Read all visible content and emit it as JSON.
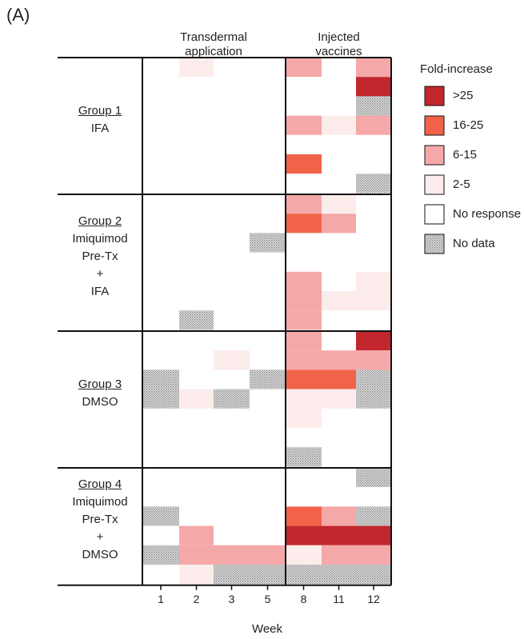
{
  "panel_label": "(A)",
  "chart_data": {
    "type": "heatmap",
    "xlabel": "Week",
    "x_groups": [
      {
        "label": "Transdermal application",
        "lines": [
          "Transdermal",
          "application"
        ],
        "weeks": [
          "1",
          "2",
          "3",
          "5"
        ]
      },
      {
        "label": "Injected vaccines",
        "lines": [
          "Injected",
          "vaccines"
        ],
        "weeks": [
          "8",
          "11",
          "12"
        ]
      }
    ],
    "weeks": [
      "1",
      "2",
      "3",
      "5",
      "8",
      "11",
      "12"
    ],
    "legend": {
      "title": "Fold-increase",
      "items": [
        {
          "key": "h",
          "label": ">25",
          "color": "#c1272d"
        },
        {
          "key": "m",
          "label": "16-25",
          "color": "#f26249"
        },
        {
          "key": "l",
          "label": "6-15",
          "color": "#f5a8a8"
        },
        {
          "key": "v",
          "label": "2-5",
          "color": "#fdecec"
        },
        {
          "key": "0",
          "label": "No response",
          "color": "#ffffff"
        },
        {
          "key": "x",
          "label": "No data",
          "color": "#c8c8c8"
        }
      ]
    },
    "groups": [
      {
        "name": "Group 1",
        "label_lines": [
          "IFA"
        ],
        "rows": [
          [
            "0",
            "v",
            "0",
            "0",
            "l",
            "0",
            "l"
          ],
          [
            "0",
            "0",
            "0",
            "0",
            "0",
            "0",
            "h"
          ],
          [
            "0",
            "0",
            "0",
            "0",
            "0",
            "0",
            "x"
          ],
          [
            "0",
            "0",
            "0",
            "0",
            "l",
            "v",
            "l"
          ],
          [
            "0",
            "0",
            "0",
            "0",
            "0",
            "0",
            "0"
          ],
          [
            "0",
            "0",
            "0",
            "0",
            "m",
            "0",
            "0"
          ],
          [
            "0",
            "0",
            "0",
            "0",
            "0",
            "0",
            "x"
          ]
        ]
      },
      {
        "name": "Group 2",
        "label_lines": [
          "Imiquimod",
          "Pre-Tx",
          "+",
          "IFA"
        ],
        "rows": [
          [
            "0",
            "0",
            "0",
            "0",
            "l",
            "v",
            "0"
          ],
          [
            "0",
            "0",
            "0",
            "0",
            "m",
            "l",
            "0"
          ],
          [
            "0",
            "0",
            "0",
            "x",
            "0",
            "0",
            "0"
          ],
          [
            "0",
            "0",
            "0",
            "0",
            "0",
            "0",
            "0"
          ],
          [
            "0",
            "0",
            "0",
            "0",
            "l",
            "0",
            "v"
          ],
          [
            "0",
            "0",
            "0",
            "0",
            "l",
            "v",
            "v"
          ],
          [
            "0",
            "x",
            "0",
            "0",
            "l",
            "0",
            "0"
          ]
        ]
      },
      {
        "name": "Group 3",
        "label_lines": [
          "DMSO"
        ],
        "rows": [
          [
            "0",
            "0",
            "0",
            "0",
            "l",
            "0",
            "h"
          ],
          [
            "0",
            "0",
            "v",
            "0",
            "l",
            "l",
            "l"
          ],
          [
            "x",
            "0",
            "0",
            "x",
            "m",
            "m",
            "x"
          ],
          [
            "x",
            "v",
            "x",
            "0",
            "v",
            "v",
            "x"
          ],
          [
            "0",
            "0",
            "0",
            "0",
            "v",
            "0",
            "0"
          ],
          [
            "0",
            "0",
            "0",
            "0",
            "0",
            "0",
            "0"
          ],
          [
            "0",
            "0",
            "0",
            "0",
            "x",
            "0",
            "0"
          ]
        ]
      },
      {
        "name": "Group 4",
        "label_lines": [
          "Imiquimod",
          "Pre-Tx",
          "+",
          "DMSO"
        ],
        "rows": [
          [
            "0",
            "0",
            "0",
            "0",
            "0",
            "0",
            "x"
          ],
          [
            "0",
            "0",
            "0",
            "0",
            "0",
            "0",
            "0"
          ],
          [
            "x",
            "0",
            "0",
            "0",
            "m",
            "l",
            "x"
          ],
          [
            "0",
            "l",
            "0",
            "0",
            "h",
            "h",
            "h"
          ],
          [
            "x",
            "l",
            "l",
            "l",
            "v",
            "l",
            "l"
          ],
          [
            "0",
            "v",
            "x",
            "x",
            "x",
            "x",
            "x"
          ]
        ]
      }
    ]
  }
}
